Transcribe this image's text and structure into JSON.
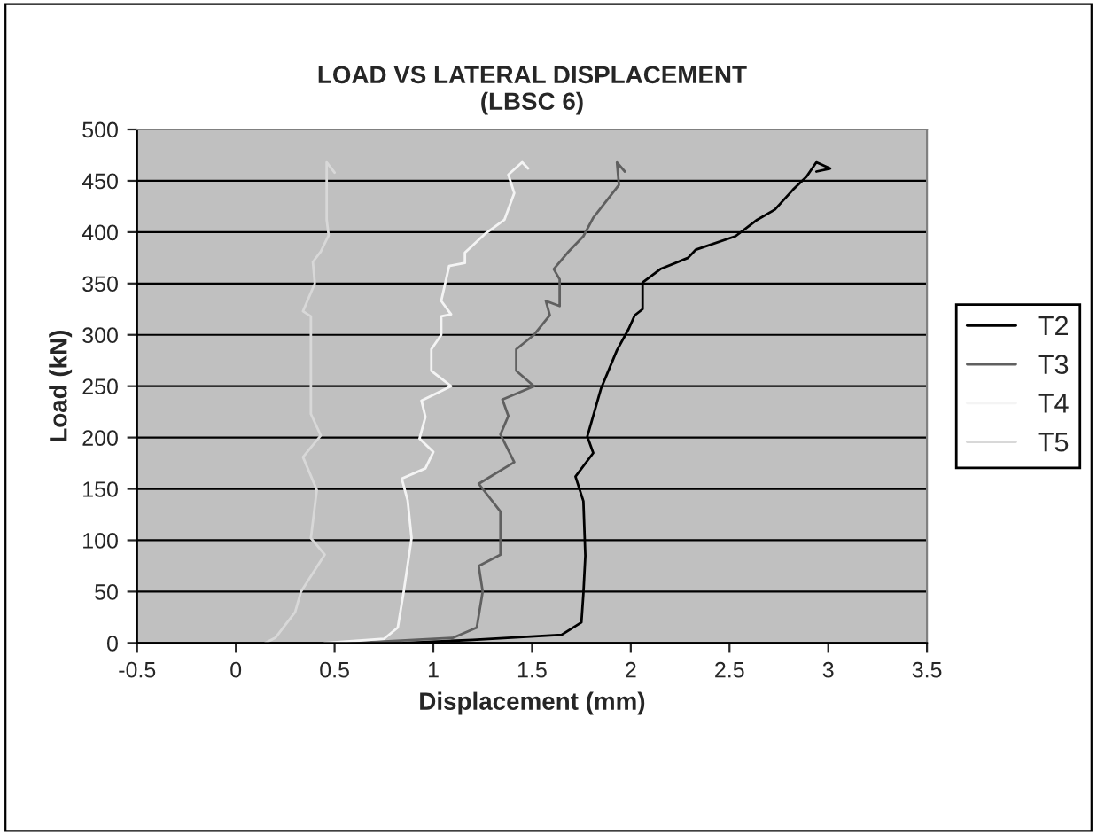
{
  "chart_data": {
    "type": "line",
    "title": "LOAD VS LATERAL DISPLACEMENT\n(LBSC 6)",
    "xlabel": "Displacement (mm)",
    "ylabel": "Load (kN)",
    "xlim": [
      -0.5,
      3.5
    ],
    "xticks": [
      -0.5,
      0,
      0.5,
      1,
      1.5,
      2,
      2.5,
      3,
      3.5
    ],
    "ylim": [
      0,
      500
    ],
    "yticks": [
      0,
      50,
      100,
      150,
      200,
      250,
      300,
      350,
      400,
      450,
      500
    ],
    "grid": "y",
    "legend": "right",
    "marker": "none",
    "line_style": "solid",
    "series": [
      {
        "name": "T2",
        "color": "#000000",
        "x": [
          0.85,
          1.2,
          1.65,
          1.75,
          1.76,
          1.77,
          1.76,
          1.72,
          1.81,
          1.78,
          1.85,
          1.93,
          1.99,
          2.02,
          2.06,
          2.06,
          2.15,
          2.29,
          2.33,
          2.53,
          2.64,
          2.73,
          2.82,
          2.89,
          2.94,
          3.01,
          2.94
        ],
        "values": [
          0,
          3,
          8,
          20,
          48,
          85,
          138,
          162,
          185,
          201,
          248,
          285,
          306,
          319,
          325,
          351,
          364,
          375,
          383,
          396,
          412,
          422,
          441,
          454,
          468,
          462,
          459
        ]
      },
      {
        "name": "T3",
        "color": "#606060",
        "x": [
          0.6,
          1.1,
          1.22,
          1.25,
          1.23,
          1.34,
          1.34,
          1.23,
          1.41,
          1.34,
          1.38,
          1.35,
          1.51,
          1.42,
          1.42,
          1.51,
          1.59,
          1.57,
          1.64,
          1.64,
          1.61,
          1.68,
          1.76,
          1.81,
          1.94,
          1.93,
          1.97
        ],
        "values": [
          0,
          5,
          15,
          50,
          75,
          86,
          128,
          155,
          176,
          203,
          221,
          237,
          250,
          265,
          286,
          300,
          319,
          333,
          328,
          354,
          364,
          380,
          396,
          414,
          446,
          468,
          459
        ]
      },
      {
        "name": "T4",
        "color": "#f4f4f4",
        "x": [
          0.45,
          0.75,
          0.82,
          0.85,
          0.89,
          0.87,
          0.84,
          0.96,
          1.0,
          0.93,
          0.96,
          0.94,
          1.09,
          0.99,
          0.99,
          1.04,
          1.04,
          1.09,
          1.04,
          1.08,
          1.16,
          1.16,
          1.26,
          1.36,
          1.41,
          1.38,
          1.45,
          1.48
        ],
        "values": [
          0,
          4,
          15,
          50,
          102,
          139,
          160,
          170,
          186,
          199,
          220,
          236,
          250,
          265,
          286,
          300,
          318,
          320,
          333,
          367,
          370,
          380,
          398,
          412,
          438,
          456,
          468,
          462
        ]
      },
      {
        "name": "T5",
        "color": "#d8d8d8",
        "x": [
          0.15,
          0.2,
          0.3,
          0.33,
          0.38,
          0.45,
          0.38,
          0.41,
          0.34,
          0.43,
          0.38,
          0.38,
          0.38,
          0.34,
          0.4,
          0.39,
          0.43,
          0.47,
          0.46,
          0.46,
          0.5
        ],
        "values": [
          0,
          5,
          30,
          50,
          65,
          86,
          102,
          149,
          181,
          202,
          223,
          239,
          318,
          323,
          350,
          371,
          381,
          397,
          412,
          468,
          458
        ]
      }
    ]
  }
}
